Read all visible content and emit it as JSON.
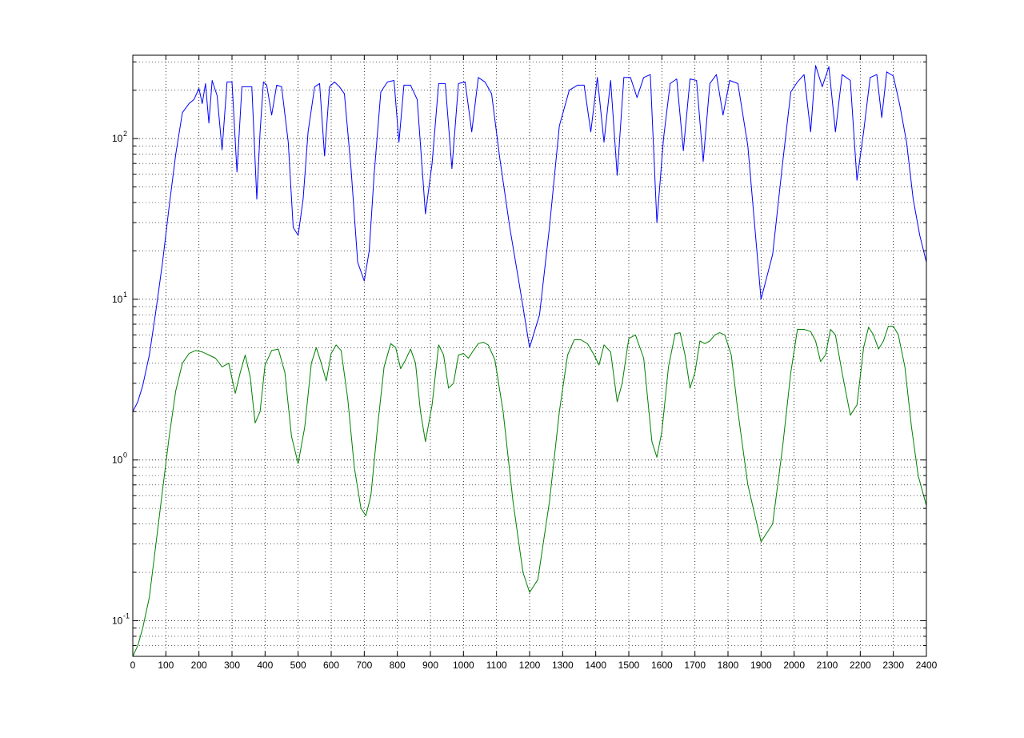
{
  "chart_data": {
    "type": "line",
    "title": "",
    "xlabel": "",
    "ylabel": "",
    "xlim": [
      0,
      2400
    ],
    "ylim": [
      0.06,
      330
    ],
    "yscale": "log",
    "grid": true,
    "grid_style": "dotted",
    "x_ticks": [
      0,
      100,
      200,
      300,
      400,
      500,
      600,
      700,
      800,
      900,
      1000,
      1100,
      1200,
      1300,
      1400,
      1500,
      1600,
      1700,
      1800,
      1900,
      2000,
      2100,
      2200,
      2300,
      2400
    ],
    "x_tick_labels": [
      "0",
      "100",
      "200",
      "300",
      "400",
      "500",
      "600",
      "700",
      "800",
      "900",
      "1000",
      "1100",
      "1200",
      "1300",
      "1400",
      "1500",
      "1600",
      "1700",
      "1800",
      "1900",
      "2000",
      "2100",
      "2200",
      "2300",
      "2400"
    ],
    "y_ticks": [
      0.1,
      1,
      10,
      100
    ],
    "y_tick_labels": [
      {
        "base": "10",
        "exp": "-1"
      },
      {
        "base": "10",
        "exp": "0"
      },
      {
        "base": "10",
        "exp": "1"
      },
      {
        "base": "10",
        "exp": "2"
      }
    ],
    "series": [
      {
        "color": "#0000ff",
        "x": [
          0,
          15,
          30,
          50,
          70,
          90,
          110,
          130,
          150,
          170,
          185,
          200,
          210,
          220,
          230,
          240,
          255,
          270,
          285,
          300,
          315,
          330,
          345,
          360,
          375,
          385,
          395,
          405,
          420,
          435,
          450,
          470,
          485,
          500,
          515,
          530,
          550,
          565,
          580,
          595,
          610,
          625,
          640,
          660,
          680,
          700,
          715,
          730,
          750,
          770,
          790,
          805,
          820,
          840,
          860,
          885,
          905,
          925,
          945,
          965,
          985,
          1005,
          1025,
          1045,
          1065,
          1085,
          1110,
          1140,
          1170,
          1200,
          1230,
          1260,
          1290,
          1320,
          1345,
          1365,
          1385,
          1405,
          1425,
          1445,
          1465,
          1485,
          1505,
          1525,
          1545,
          1565,
          1585,
          1605,
          1625,
          1645,
          1665,
          1685,
          1705,
          1725,
          1745,
          1765,
          1785,
          1805,
          1830,
          1860,
          1900,
          1935,
          1965,
          1990,
          2010,
          2030,
          2050,
          2065,
          2085,
          2105,
          2125,
          2145,
          2170,
          2190,
          2210,
          2230,
          2250,
          2265,
          2280,
          2300,
          2320,
          2340,
          2360,
          2380,
          2400
        ],
        "y": [
          2.0,
          2.3,
          2.9,
          4.5,
          8.5,
          17,
          38,
          80,
          145,
          165,
          175,
          205,
          165,
          220,
          125,
          230,
          185,
          85,
          225,
          225,
          62,
          210,
          210,
          210,
          42,
          110,
          225,
          215,
          140,
          215,
          210,
          95,
          28,
          25,
          42,
          110,
          210,
          220,
          78,
          210,
          225,
          210,
          190,
          65,
          17,
          13,
          20,
          60,
          195,
          225,
          230,
          95,
          215,
          215,
          175,
          34,
          70,
          220,
          220,
          65,
          220,
          225,
          110,
          240,
          225,
          190,
          75,
          28,
          12,
          5,
          8,
          28,
          120,
          200,
          215,
          215,
          110,
          240,
          95,
          230,
          59,
          240,
          240,
          180,
          240,
          250,
          30,
          100,
          220,
          235,
          84,
          235,
          230,
          72,
          220,
          250,
          140,
          230,
          220,
          90,
          10,
          19,
          70,
          195,
          225,
          250,
          110,
          285,
          210,
          280,
          110,
          250,
          230,
          55,
          110,
          240,
          250,
          135,
          260,
          245,
          160,
          95,
          42,
          25,
          17
        ]
      },
      {
        "color": "#008000",
        "x": [
          0,
          15,
          30,
          50,
          70,
          90,
          110,
          130,
          150,
          170,
          190,
          210,
          230,
          250,
          270,
          290,
          310,
          325,
          340,
          355,
          370,
          385,
          400,
          420,
          440,
          460,
          480,
          500,
          520,
          540,
          555,
          570,
          585,
          600,
          615,
          630,
          650,
          670,
          690,
          705,
          720,
          740,
          760,
          780,
          795,
          810,
          825,
          840,
          855,
          870,
          885,
          905,
          925,
          940,
          955,
          970,
          985,
          1000,
          1015,
          1030,
          1045,
          1060,
          1075,
          1095,
          1120,
          1150,
          1180,
          1200,
          1225,
          1260,
          1290,
          1315,
          1335,
          1355,
          1375,
          1395,
          1410,
          1425,
          1445,
          1465,
          1480,
          1500,
          1520,
          1545,
          1570,
          1585,
          1600,
          1620,
          1640,
          1655,
          1670,
          1685,
          1700,
          1715,
          1730,
          1745,
          1760,
          1775,
          1790,
          1810,
          1830,
          1860,
          1900,
          1935,
          1965,
          1990,
          2010,
          2030,
          2050,
          2065,
          2080,
          2095,
          2110,
          2125,
          2145,
          2170,
          2190,
          2210,
          2225,
          2240,
          2255,
          2270,
          2285,
          2300,
          2315,
          2335,
          2355,
          2375,
          2400
        ],
        "y": [
          0.06,
          0.07,
          0.09,
          0.14,
          0.3,
          0.65,
          1.4,
          2.7,
          4.0,
          4.6,
          4.8,
          4.7,
          4.5,
          4.3,
          3.8,
          4.0,
          2.6,
          3.5,
          4.5,
          3.3,
          1.7,
          2.0,
          3.9,
          4.8,
          4.9,
          3.5,
          1.4,
          0.95,
          1.6,
          4.0,
          5.0,
          4.0,
          3.1,
          4.6,
          5.2,
          4.8,
          2.4,
          0.9,
          0.5,
          0.45,
          0.6,
          1.6,
          3.8,
          5.3,
          5.0,
          3.7,
          4.2,
          4.9,
          4.0,
          2.0,
          1.3,
          2.2,
          5.2,
          4.5,
          2.8,
          3.0,
          4.5,
          4.6,
          4.3,
          4.8,
          5.3,
          5.4,
          5.2,
          4.2,
          2.0,
          0.55,
          0.2,
          0.15,
          0.18,
          0.55,
          2.0,
          4.5,
          5.6,
          5.6,
          5.3,
          4.5,
          3.9,
          5.2,
          4.7,
          2.3,
          3.0,
          5.7,
          6.0,
          4.3,
          1.3,
          1.04,
          1.5,
          3.8,
          6.1,
          6.2,
          4.5,
          2.8,
          3.5,
          5.5,
          5.3,
          5.5,
          6.0,
          6.2,
          6.0,
          4.5,
          2.0,
          0.7,
          0.31,
          0.4,
          1.2,
          3.5,
          6.5,
          6.5,
          6.3,
          5.5,
          4.1,
          4.5,
          6.5,
          6.0,
          3.5,
          1.9,
          2.2,
          5.0,
          6.7,
          6.0,
          4.9,
          5.5,
          6.8,
          6.8,
          6.0,
          3.8,
          1.6,
          0.8,
          0.52
        ]
      }
    ]
  }
}
